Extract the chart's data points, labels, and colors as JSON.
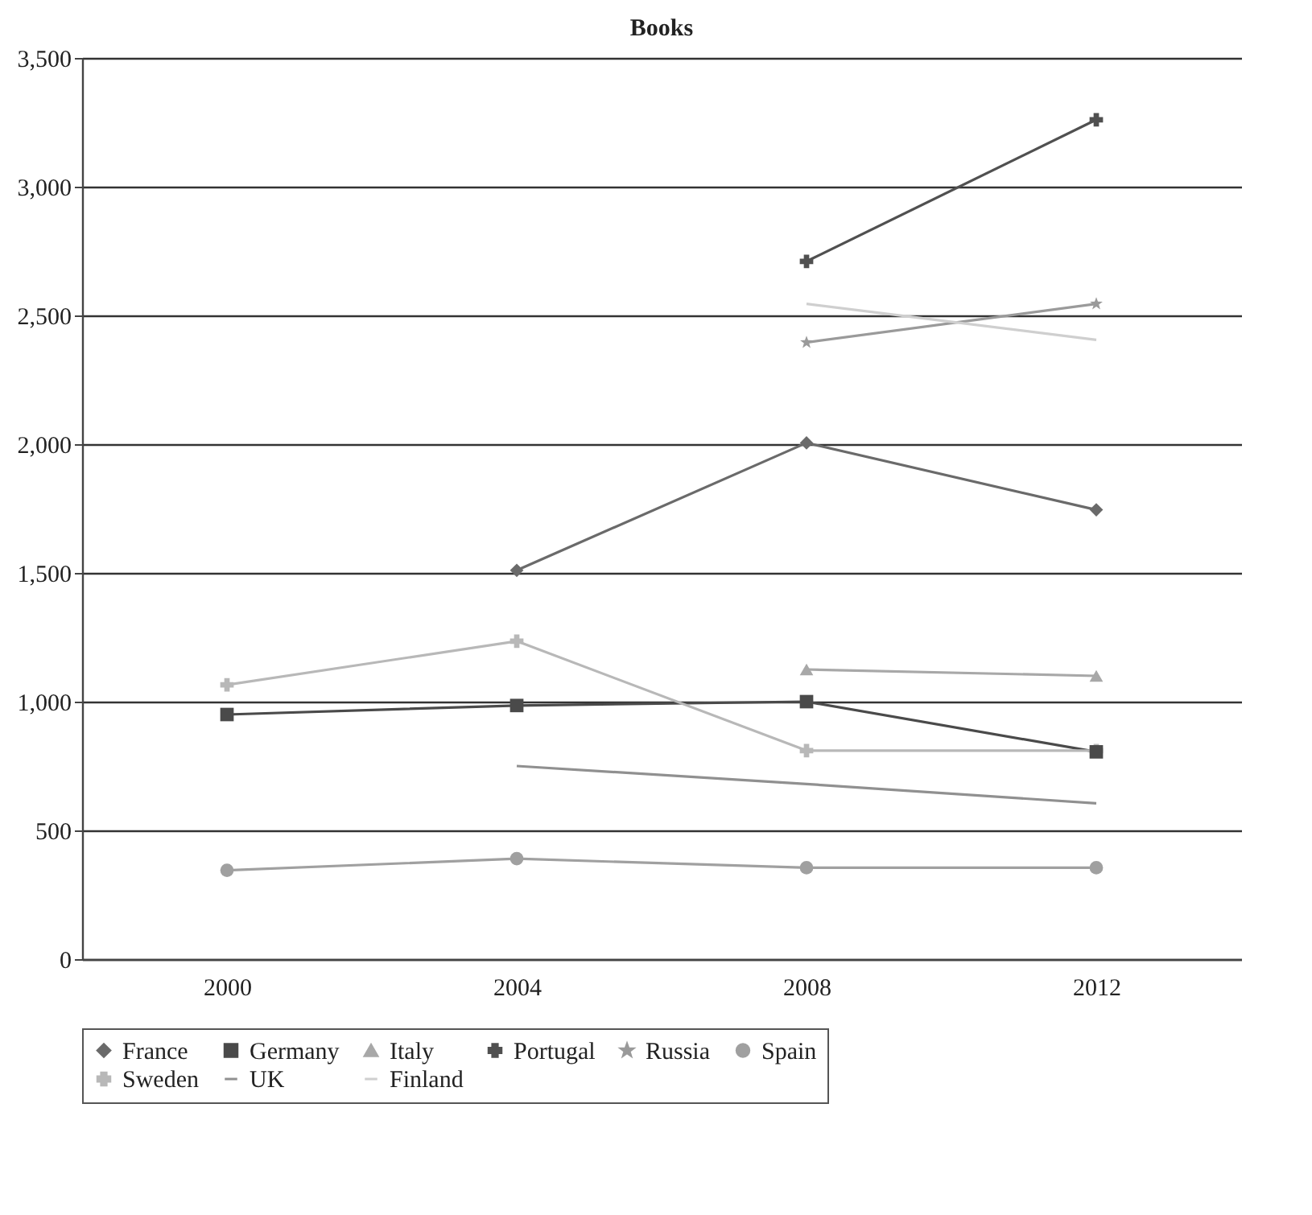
{
  "chart_data": {
    "type": "line",
    "title": "Books",
    "categories": [
      "2000",
      "2004",
      "2008",
      "2012"
    ],
    "ylim": [
      0,
      3500
    ],
    "yticks": [
      0,
      500,
      {
        "value": 1000,
        "label": "1,000"
      },
      {
        "value": 1500,
        "label": "1,500"
      },
      {
        "value": 2000,
        "label": "2,000"
      },
      {
        "value": 2500,
        "label": "2,500"
      },
      {
        "value": 3000,
        "label": "3,000"
      },
      {
        "value": 3500,
        "label": "3,500"
      }
    ],
    "grid": "y",
    "legend": "bottom",
    "series": [
      {
        "name": "France",
        "color": "#6a6a6a",
        "marker": "diamond",
        "values": [
          null,
          1510,
          2005,
          1745
        ]
      },
      {
        "name": "Germany",
        "color": "#4a4a4a",
        "marker": "square",
        "values": [
          950,
          985,
          1000,
          805
        ]
      },
      {
        "name": "Italy",
        "color": "#a8a8a8",
        "marker": "triangle",
        "values": [
          null,
          null,
          1125,
          1100
        ]
      },
      {
        "name": "Portugal",
        "color": "#505050",
        "marker": "cross",
        "values": [
          null,
          null,
          2710,
          3260
        ]
      },
      {
        "name": "Russia",
        "color": "#9a9a9a",
        "marker": "star",
        "values": [
          null,
          null,
          2395,
          2545
        ]
      },
      {
        "name": "Spain",
        "color": "#a0a0a0",
        "marker": "circle",
        "values": [
          345,
          390,
          355,
          355
        ]
      },
      {
        "name": "Sweden",
        "color": "#b8b8b8",
        "marker": "cross",
        "values": [
          1065,
          1235,
          810,
          810
        ]
      },
      {
        "name": "UK",
        "color": "#909090",
        "marker": "none",
        "values": [
          null,
          750,
          680,
          605
        ]
      },
      {
        "name": "Finland",
        "color": "#cfcfcf",
        "marker": "none",
        "values": [
          null,
          null,
          2545,
          2405
        ]
      }
    ]
  }
}
